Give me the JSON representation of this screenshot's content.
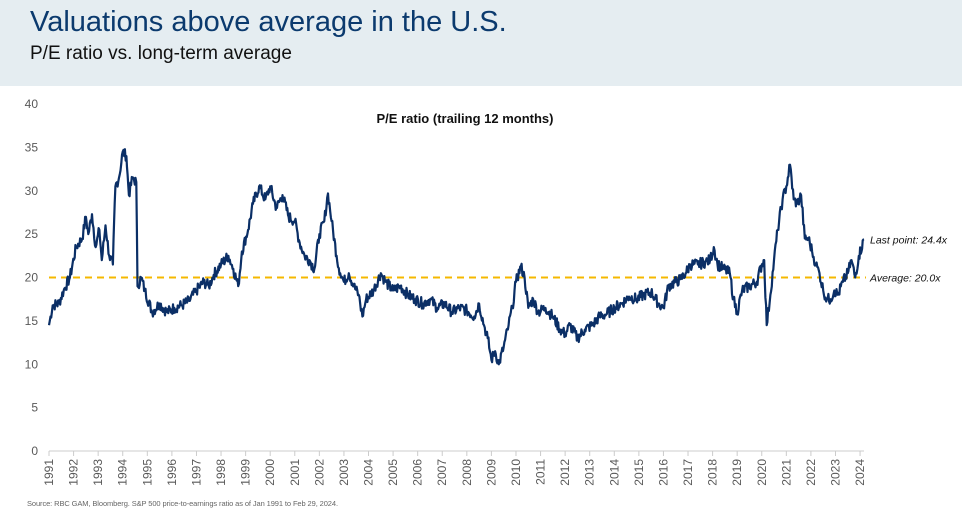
{
  "header": {
    "title": "Valuations above average in the U.S.",
    "subtitle": "P/E ratio vs. long-term average"
  },
  "footer": {
    "source": "Source: RBC GAM, Bloomberg. S&P 500 price-to-earnings ratio as of Jan 1991 to Feb 29, 2024."
  },
  "colors": {
    "header_bg": "#e5edf1",
    "title": "#0b3a6e",
    "series": "#0b2f66",
    "average_line": "#f5b800",
    "axis": "#cccccc",
    "tick_label": "#595959"
  },
  "chart_data": {
    "type": "line",
    "title": "P/E ratio (trailing 12 months)",
    "xlabel": "",
    "ylabel": "",
    "ylim": [
      0,
      40
    ],
    "yticks": [
      0,
      5,
      10,
      15,
      20,
      25,
      30,
      35,
      40
    ],
    "xlim": [
      1991.0,
      2024.16
    ],
    "xticks": [
      "1991",
      "1992",
      "1993",
      "1994",
      "1995",
      "1996",
      "1997",
      "1998",
      "1999",
      "2000",
      "2001",
      "2002",
      "2003",
      "2004",
      "2005",
      "2006",
      "2007",
      "2008",
      "2009",
      "2010",
      "2011",
      "2012",
      "2013",
      "2014",
      "2015",
      "2016",
      "2017",
      "2018",
      "2019",
      "2020",
      "2021",
      "2022",
      "2023",
      "2024"
    ],
    "grid": false,
    "legend": "none",
    "series": [
      {
        "name": "P/E ratio",
        "frequency": "approximate keypoints (year, value)",
        "points": [
          [
            1991.0,
            14.5
          ],
          [
            1991.15,
            16.8
          ],
          [
            1991.4,
            17.0
          ],
          [
            1991.6,
            18.5
          ],
          [
            1991.85,
            20.0
          ],
          [
            1992.1,
            23.5
          ],
          [
            1992.35,
            24.5
          ],
          [
            1992.5,
            27.0
          ],
          [
            1992.6,
            25.0
          ],
          [
            1992.75,
            27.3
          ],
          [
            1992.9,
            23.5
          ],
          [
            1993.05,
            25.5
          ],
          [
            1993.15,
            22.0
          ],
          [
            1993.3,
            26.0
          ],
          [
            1993.45,
            22.5
          ],
          [
            1993.6,
            21.5
          ],
          [
            1993.7,
            30.5
          ],
          [
            1993.85,
            31.5
          ],
          [
            1994.0,
            34.5
          ],
          [
            1994.15,
            34.0
          ],
          [
            1994.25,
            29.5
          ],
          [
            1994.4,
            31.5
          ],
          [
            1994.55,
            31.0
          ],
          [
            1994.6,
            19.0
          ],
          [
            1994.75,
            20.0
          ],
          [
            1994.9,
            18.5
          ],
          [
            1995.2,
            16.0
          ],
          [
            1995.5,
            17.0
          ],
          [
            1995.8,
            16.0
          ],
          [
            1996.1,
            16.5
          ],
          [
            1996.4,
            16.8
          ],
          [
            1996.7,
            17.3
          ],
          [
            1997.0,
            18.5
          ],
          [
            1997.3,
            19.5
          ],
          [
            1997.5,
            19.0
          ],
          [
            1997.7,
            20.3
          ],
          [
            1998.0,
            21.5
          ],
          [
            1998.3,
            22.5
          ],
          [
            1998.5,
            21.0
          ],
          [
            1998.7,
            19.0
          ],
          [
            1998.85,
            23.0
          ],
          [
            1999.1,
            25.5
          ],
          [
            1999.3,
            28.5
          ],
          [
            1999.55,
            30.5
          ],
          [
            1999.8,
            29.0
          ],
          [
            2000.0,
            30.5
          ],
          [
            2000.25,
            28.0
          ],
          [
            2000.5,
            29.5
          ],
          [
            2000.75,
            27.0
          ],
          [
            2001.0,
            26.5
          ],
          [
            2001.2,
            24.0
          ],
          [
            2001.4,
            22.5
          ],
          [
            2001.6,
            22.0
          ],
          [
            2001.8,
            21.0
          ],
          [
            2002.0,
            25.0
          ],
          [
            2002.2,
            26.5
          ],
          [
            2002.35,
            29.7
          ],
          [
            2002.5,
            26.5
          ],
          [
            2002.7,
            22.5
          ],
          [
            2002.85,
            20.5
          ],
          [
            2003.0,
            19.5
          ],
          [
            2003.2,
            20.5
          ],
          [
            2003.4,
            19.0
          ],
          [
            2003.6,
            18.0
          ],
          [
            2003.75,
            15.5
          ],
          [
            2003.9,
            17.5
          ],
          [
            2004.2,
            18.5
          ],
          [
            2004.5,
            20.5
          ],
          [
            2004.7,
            19.5
          ],
          [
            2005.0,
            18.5
          ],
          [
            2005.3,
            19.0
          ],
          [
            2005.6,
            18.0
          ],
          [
            2005.9,
            17.5
          ],
          [
            2006.2,
            17.0
          ],
          [
            2006.5,
            17.5
          ],
          [
            2006.8,
            16.5
          ],
          [
            2007.1,
            17.0
          ],
          [
            2007.4,
            16.0
          ],
          [
            2007.7,
            16.5
          ],
          [
            2008.0,
            16.2
          ],
          [
            2008.3,
            15.5
          ],
          [
            2008.5,
            17.0
          ],
          [
            2008.7,
            14.5
          ],
          [
            2008.85,
            13.0
          ],
          [
            2009.0,
            10.5
          ],
          [
            2009.15,
            11.5
          ],
          [
            2009.3,
            10.0
          ],
          [
            2009.5,
            12.0
          ],
          [
            2009.7,
            14.5
          ],
          [
            2009.85,
            16.5
          ],
          [
            2010.0,
            19.5
          ],
          [
            2010.2,
            21.3
          ],
          [
            2010.35,
            20.0
          ],
          [
            2010.5,
            16.5
          ],
          [
            2010.7,
            17.5
          ],
          [
            2010.9,
            16.0
          ],
          [
            2011.2,
            16.5
          ],
          [
            2011.5,
            15.5
          ],
          [
            2011.8,
            14.0
          ],
          [
            2012.0,
            13.5
          ],
          [
            2012.2,
            14.5
          ],
          [
            2012.5,
            13.0
          ],
          [
            2012.8,
            14.0
          ],
          [
            2013.1,
            14.5
          ],
          [
            2013.4,
            15.5
          ],
          [
            2013.7,
            15.8
          ],
          [
            2014.0,
            16.5
          ],
          [
            2014.3,
            17.0
          ],
          [
            2014.6,
            17.8
          ],
          [
            2014.9,
            17.5
          ],
          [
            2015.2,
            18.0
          ],
          [
            2015.5,
            18.3
          ],
          [
            2015.8,
            17.0
          ],
          [
            2016.0,
            16.5
          ],
          [
            2016.2,
            19.0
          ],
          [
            2016.5,
            19.5
          ],
          [
            2016.7,
            19.8
          ],
          [
            2016.9,
            20.5
          ],
          [
            2017.1,
            21.5
          ],
          [
            2017.4,
            21.5
          ],
          [
            2017.7,
            21.8
          ],
          [
            2017.9,
            22.0
          ],
          [
            2018.05,
            23.5
          ],
          [
            2018.2,
            21.5
          ],
          [
            2018.45,
            21.0
          ],
          [
            2018.7,
            20.5
          ],
          [
            2018.85,
            17.5
          ],
          [
            2019.0,
            16.0
          ],
          [
            2019.2,
            18.5
          ],
          [
            2019.5,
            19.0
          ],
          [
            2019.8,
            19.5
          ],
          [
            2020.0,
            21.5
          ],
          [
            2020.1,
            22.0
          ],
          [
            2020.2,
            14.5
          ],
          [
            2020.35,
            18.0
          ],
          [
            2020.5,
            22.0
          ],
          [
            2020.65,
            25.5
          ],
          [
            2020.85,
            29.0
          ],
          [
            2021.0,
            30.5
          ],
          [
            2021.15,
            33.0
          ],
          [
            2021.3,
            29.0
          ],
          [
            2021.45,
            28.5
          ],
          [
            2021.6,
            29.5
          ],
          [
            2021.75,
            24.5
          ],
          [
            2021.9,
            24.5
          ],
          [
            2022.05,
            23.0
          ],
          [
            2022.2,
            21.5
          ],
          [
            2022.35,
            20.5
          ],
          [
            2022.5,
            18.5
          ],
          [
            2022.65,
            17.5
          ],
          [
            2022.8,
            17.5
          ],
          [
            2022.95,
            18.5
          ],
          [
            2023.1,
            18.0
          ],
          [
            2023.3,
            19.5
          ],
          [
            2023.5,
            20.5
          ],
          [
            2023.65,
            22.0
          ],
          [
            2023.8,
            20.0
          ],
          [
            2023.95,
            22.5
          ],
          [
            2024.16,
            24.4
          ]
        ]
      },
      {
        "name": "Long-term average",
        "style": "dashed",
        "value": 20.0
      }
    ],
    "annotations": [
      {
        "text": "Last point: 24.4x",
        "x": 2024.16,
        "y": 24.4
      },
      {
        "text": "Average: 20.0x",
        "x": 2024.16,
        "y": 20.0
      }
    ]
  }
}
